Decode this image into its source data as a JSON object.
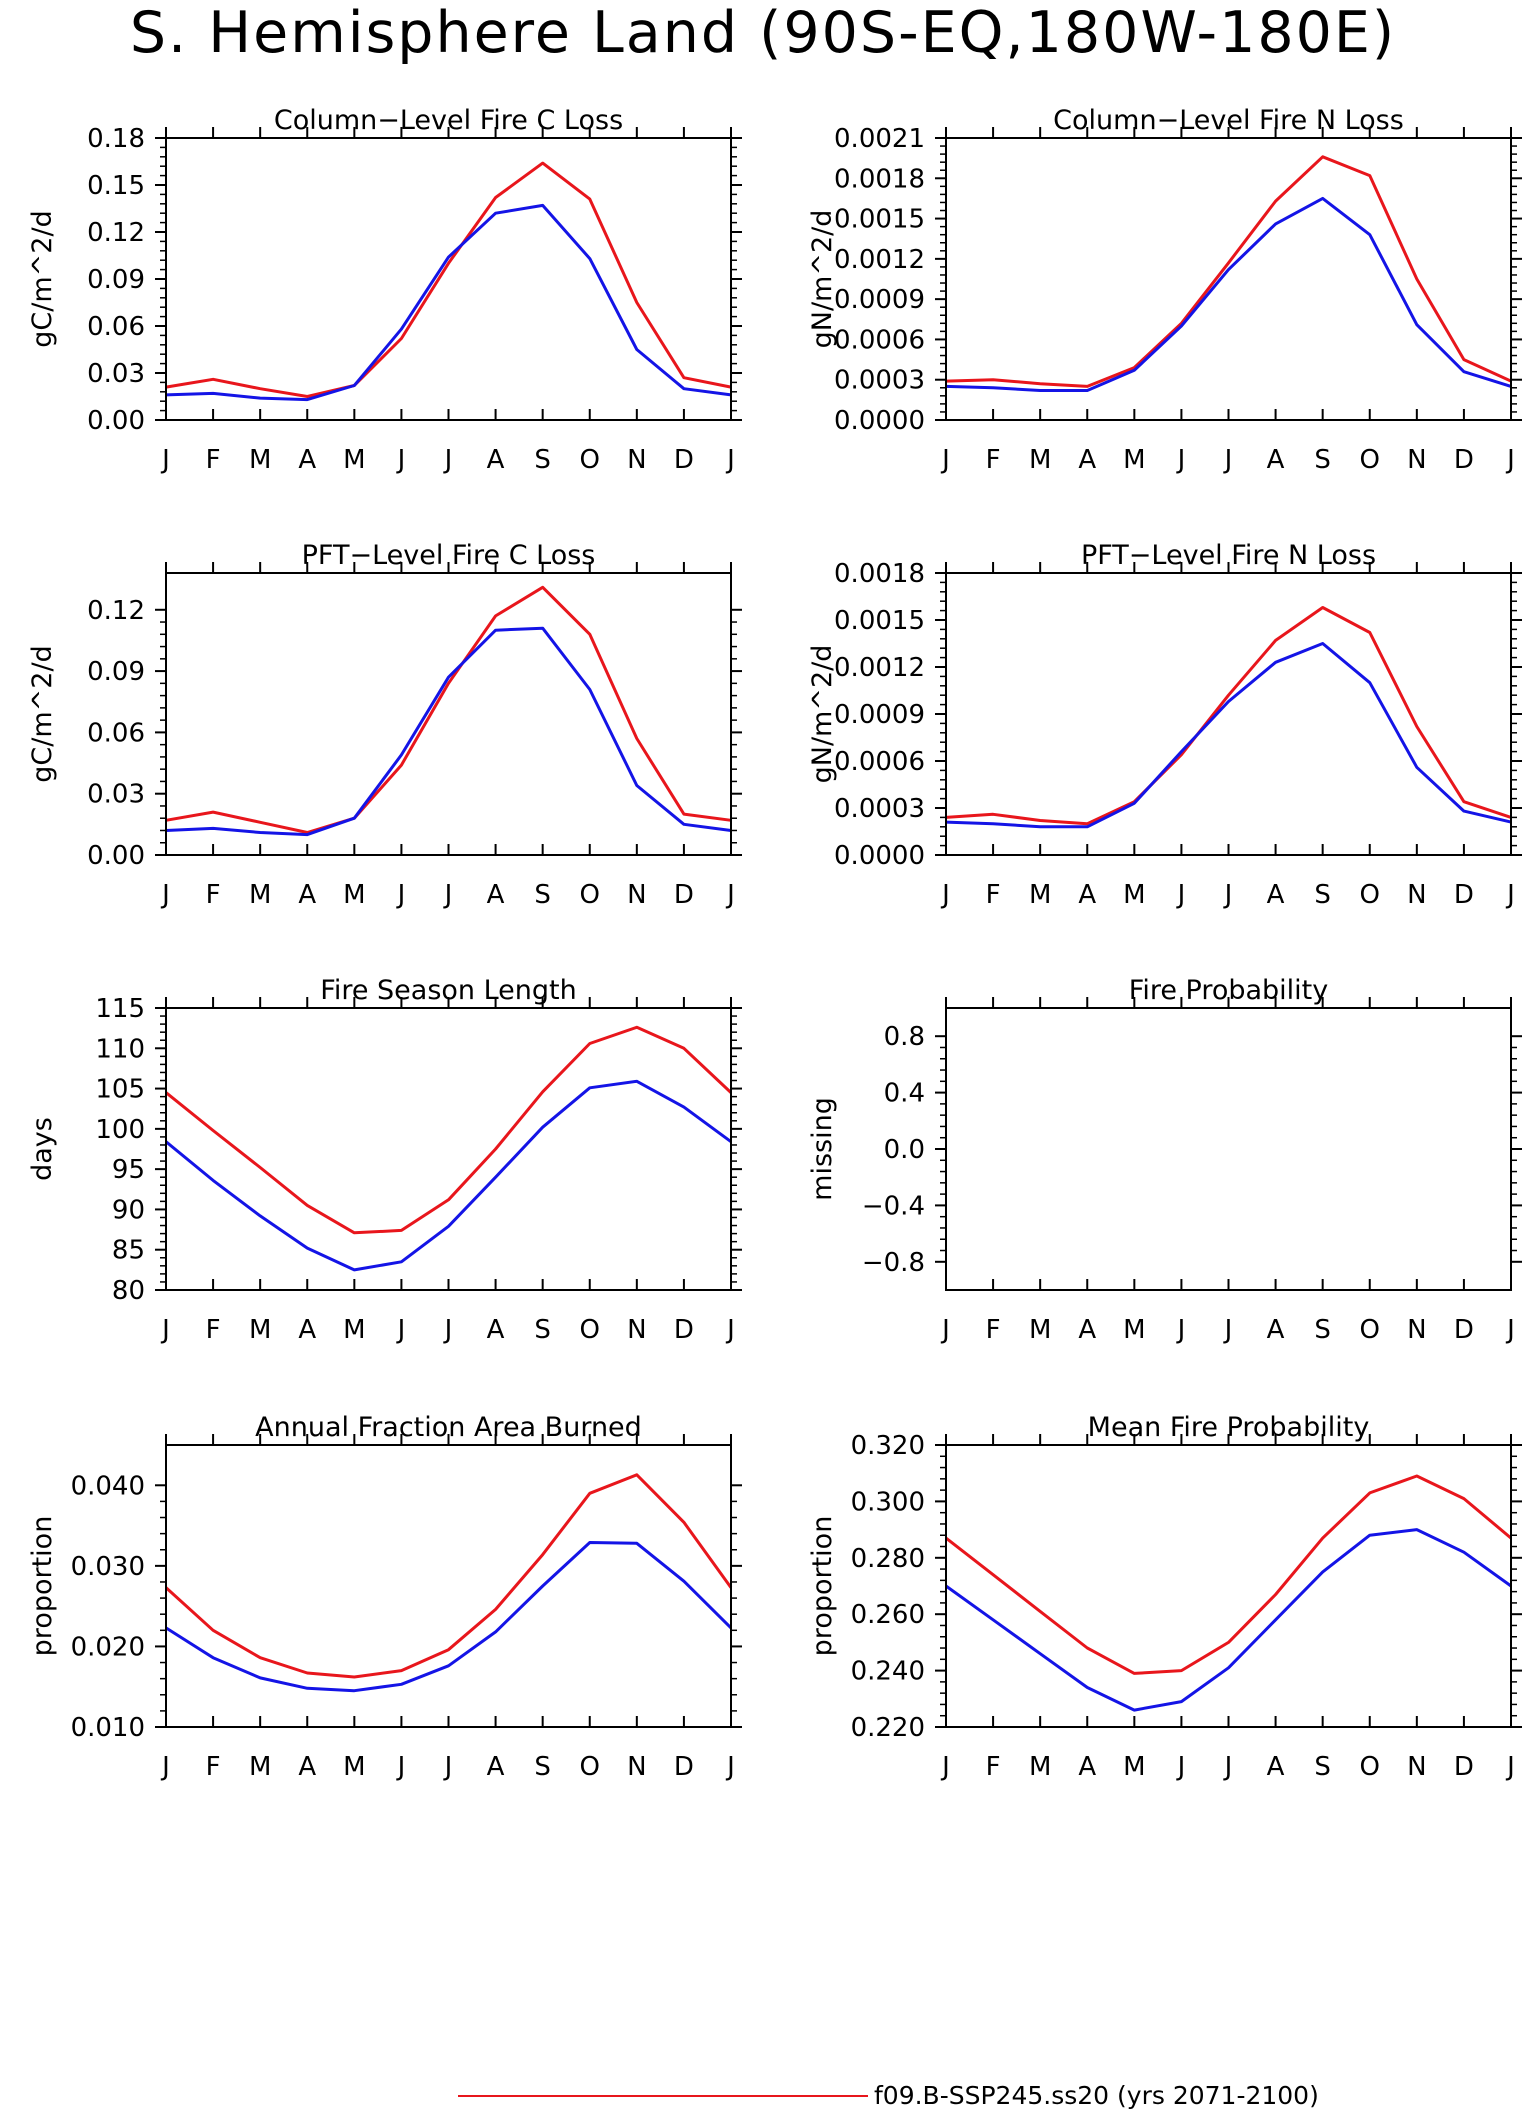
{
  "title": "S. Hemisphere Land (90S-EQ,180W-180E)",
  "colors": {
    "series_a": "#e8161c",
    "series_b": "#1414e6",
    "axis": "#000000"
  },
  "legend": {
    "label": "f09.B-SSP245.ss20 (yrs 2071-2100)"
  },
  "chart_data": [
    {
      "type": "line",
      "title": "Column-Level Fire C Loss",
      "ylabel": "gC/m^2/d",
      "categories": [
        "J",
        "F",
        "M",
        "A",
        "M",
        "J",
        "J",
        "A",
        "S",
        "O",
        "N",
        "D",
        "J"
      ],
      "ylim": [
        0,
        0.18
      ],
      "yticks": [
        0,
        0.03,
        0.06,
        0.09,
        0.12,
        0.15,
        0.18
      ],
      "ytick_labels": [
        "0.00",
        "0.03",
        "0.06",
        "0.09",
        "0.12",
        "0.15",
        "0.18"
      ],
      "series": [
        {
          "color": "#e8161c",
          "values": [
            0.021,
            0.026,
            0.02,
            0.015,
            0.022,
            0.052,
            0.1,
            0.142,
            0.164,
            0.141,
            0.075,
            0.027,
            0.021
          ]
        },
        {
          "color": "#1414e6",
          "values": [
            0.016,
            0.017,
            0.014,
            0.013,
            0.022,
            0.058,
            0.104,
            0.132,
            0.137,
            0.103,
            0.045,
            0.02,
            0.016
          ]
        }
      ]
    },
    {
      "type": "line",
      "title": "Column-Level Fire N Loss",
      "ylabel": "gN/m^2/d",
      "categories": [
        "J",
        "F",
        "M",
        "A",
        "M",
        "J",
        "J",
        "A",
        "S",
        "O",
        "N",
        "D",
        "J"
      ],
      "ylim": [
        0,
        0.0021
      ],
      "yticks": [
        0,
        0.0003,
        0.0006,
        0.0009,
        0.0012,
        0.0015,
        0.0018,
        0.0021
      ],
      "ytick_labels": [
        "0.0000",
        "0.0003",
        "0.0006",
        "0.0009",
        "0.0012",
        "0.0015",
        "0.0018",
        "0.0021"
      ],
      "series": [
        {
          "color": "#e8161c",
          "values": [
            0.00029,
            0.0003,
            0.00027,
            0.00025,
            0.00039,
            0.00072,
            0.00117,
            0.00163,
            0.00196,
            0.00182,
            0.00105,
            0.00045,
            0.00029
          ]
        },
        {
          "color": "#1414e6",
          "values": [
            0.00025,
            0.00024,
            0.00022,
            0.00022,
            0.00037,
            0.0007,
            0.00112,
            0.00146,
            0.00165,
            0.00138,
            0.00071,
            0.00036,
            0.00025
          ]
        }
      ]
    },
    {
      "type": "line",
      "title": "PFT-Level Fire C Loss",
      "ylabel": "gC/m^2/d",
      "categories": [
        "J",
        "F",
        "M",
        "A",
        "M",
        "J",
        "J",
        "A",
        "S",
        "O",
        "N",
        "D",
        "J"
      ],
      "ylim": [
        0,
        0.138
      ],
      "yticks": [
        0,
        0.03,
        0.06,
        0.09,
        0.12
      ],
      "ytick_labels": [
        "0.00",
        "0.03",
        "0.06",
        "0.09",
        "0.12"
      ],
      "series": [
        {
          "color": "#e8161c",
          "values": [
            0.017,
            0.021,
            0.016,
            0.011,
            0.018,
            0.044,
            0.084,
            0.117,
            0.131,
            0.108,
            0.057,
            0.02,
            0.017
          ]
        },
        {
          "color": "#1414e6",
          "values": [
            0.012,
            0.013,
            0.011,
            0.01,
            0.018,
            0.049,
            0.087,
            0.11,
            0.111,
            0.081,
            0.034,
            0.015,
            0.012
          ]
        }
      ]
    },
    {
      "type": "line",
      "title": "PFT-Level Fire N Loss",
      "ylabel": "gN/m^2/d",
      "categories": [
        "J",
        "F",
        "M",
        "A",
        "M",
        "J",
        "J",
        "A",
        "S",
        "O",
        "N",
        "D",
        "J"
      ],
      "ylim": [
        0,
        0.0018
      ],
      "yticks": [
        0,
        0.0003,
        0.0006,
        0.0009,
        0.0012,
        0.0015,
        0.0018
      ],
      "ytick_labels": [
        "0.0000",
        "0.0003",
        "0.0006",
        "0.0009",
        "0.0012",
        "0.0015",
        "0.0018"
      ],
      "series": [
        {
          "color": "#e8161c",
          "values": [
            0.00024,
            0.00026,
            0.00022,
            0.0002,
            0.00034,
            0.00064,
            0.00102,
            0.00137,
            0.00158,
            0.00142,
            0.00082,
            0.00034,
            0.00024
          ]
        },
        {
          "color": "#1414e6",
          "values": [
            0.00021,
            0.0002,
            0.00018,
            0.00018,
            0.00033,
            0.00066,
            0.00098,
            0.00123,
            0.00135,
            0.0011,
            0.00056,
            0.00028,
            0.00021
          ]
        }
      ]
    },
    {
      "type": "line",
      "title": "Fire Season Length",
      "ylabel": "days",
      "categories": [
        "J",
        "F",
        "M",
        "A",
        "M",
        "J",
        "J",
        "A",
        "S",
        "O",
        "N",
        "D",
        "J"
      ],
      "ylim": [
        80,
        115
      ],
      "yticks": [
        80,
        85,
        90,
        95,
        100,
        105,
        110,
        115
      ],
      "ytick_labels": [
        "80",
        "85",
        "90",
        "95",
        "100",
        "105",
        "110",
        "115"
      ],
      "series": [
        {
          "color": "#e8161c",
          "values": [
            104.5,
            99.8,
            95.2,
            90.5,
            87.1,
            87.4,
            91.2,
            97.5,
            104.6,
            110.6,
            112.6,
            110.0,
            104.5
          ]
        },
        {
          "color": "#1414e6",
          "values": [
            98.4,
            93.6,
            89.2,
            85.2,
            82.5,
            83.5,
            87.9,
            94.0,
            100.2,
            105.1,
            105.9,
            102.7,
            98.4
          ]
        }
      ]
    },
    {
      "type": "line",
      "title": "Fire Probability",
      "ylabel": "missing",
      "categories": [
        "J",
        "F",
        "M",
        "A",
        "M",
        "J",
        "J",
        "A",
        "S",
        "O",
        "N",
        "D",
        "J"
      ],
      "ylim": [
        -1.0,
        1.0
      ],
      "yticks": [
        -0.8,
        -0.4,
        0.0,
        0.4,
        0.8
      ],
      "ytick_labels": [
        "-0.8",
        "-0.4",
        "0.0",
        "0.4",
        "0.8"
      ],
      "series": []
    },
    {
      "type": "line",
      "title": "Annual Fraction Area Burned",
      "ylabel": "proportion",
      "categories": [
        "J",
        "F",
        "M",
        "A",
        "M",
        "J",
        "J",
        "A",
        "S",
        "O",
        "N",
        "D",
        "J"
      ],
      "ylim": [
        0.01,
        0.045
      ],
      "yticks": [
        0.01,
        0.02,
        0.03,
        0.04
      ],
      "ytick_labels": [
        "0.010",
        "0.020",
        "0.030",
        "0.040"
      ],
      "series": [
        {
          "color": "#e8161c",
          "values": [
            0.0273,
            0.022,
            0.0186,
            0.0167,
            0.0162,
            0.017,
            0.0196,
            0.0246,
            0.0314,
            0.039,
            0.0413,
            0.0354,
            0.0273
          ]
        },
        {
          "color": "#1414e6",
          "values": [
            0.0223,
            0.0186,
            0.0161,
            0.0148,
            0.0145,
            0.0153,
            0.0176,
            0.0218,
            0.0275,
            0.0329,
            0.0328,
            0.0281,
            0.0223
          ]
        }
      ]
    },
    {
      "type": "line",
      "title": "Mean Fire Probability",
      "ylabel": "proportion",
      "categories": [
        "J",
        "F",
        "M",
        "A",
        "M",
        "J",
        "J",
        "A",
        "S",
        "O",
        "N",
        "D",
        "J"
      ],
      "ylim": [
        0.22,
        0.32
      ],
      "yticks": [
        0.22,
        0.24,
        0.26,
        0.28,
        0.3,
        0.32
      ],
      "ytick_labels": [
        "0.220",
        "0.240",
        "0.260",
        "0.280",
        "0.300",
        "0.320"
      ],
      "series": [
        {
          "color": "#e8161c",
          "values": [
            0.287,
            0.274,
            0.261,
            0.248,
            0.239,
            0.24,
            0.25,
            0.267,
            0.287,
            0.303,
            0.309,
            0.301,
            0.287
          ]
        },
        {
          "color": "#1414e6",
          "values": [
            0.27,
            0.258,
            0.246,
            0.234,
            0.226,
            0.229,
            0.241,
            0.258,
            0.275,
            0.288,
            0.29,
            0.282,
            0.27
          ]
        }
      ]
    }
  ]
}
